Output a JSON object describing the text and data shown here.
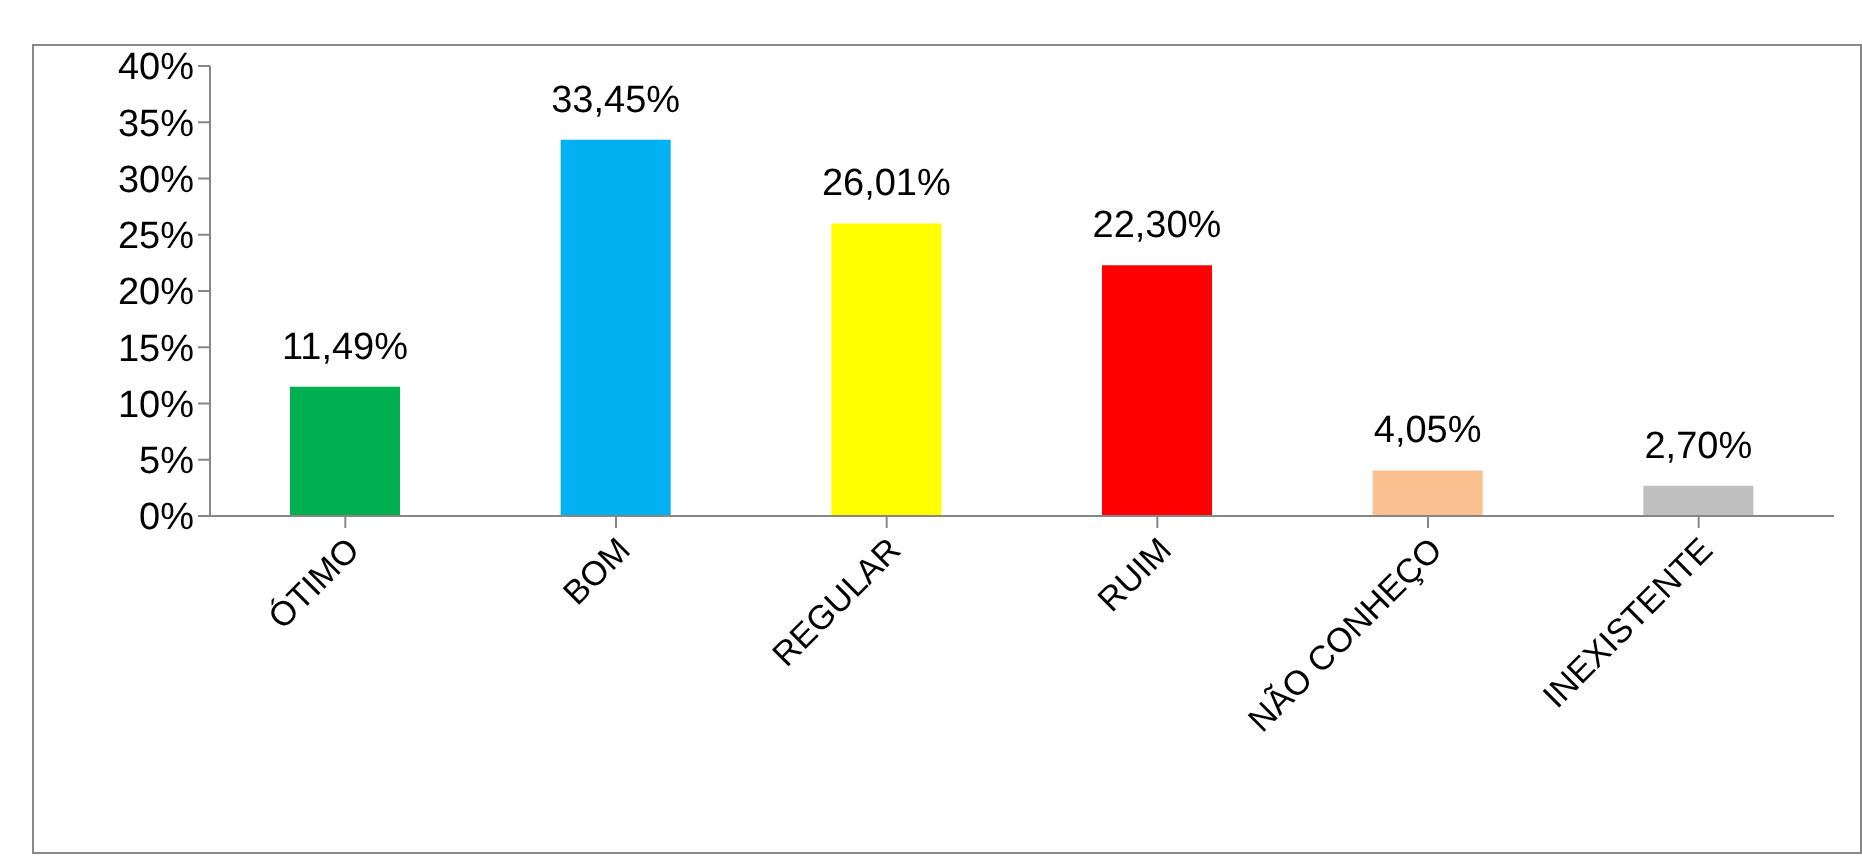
{
  "chart_data": {
    "type": "bar",
    "categories": [
      "ÓTIMO",
      "BOM",
      "REGULAR",
      "RUIM",
      "NÃO CONHEÇO",
      "INEXISTENTE"
    ],
    "values": [
      11.49,
      33.45,
      26.01,
      22.3,
      4.05,
      2.7
    ],
    "colors": [
      "#00b050",
      "#00b0f0",
      "#ffff00",
      "#ff0000",
      "#fac090",
      "#bfbfbf"
    ],
    "value_labels": [
      "11,49%",
      "33,45%",
      "26,01%",
      "22,30%",
      "4,05%",
      "2,70%"
    ],
    "ylim": [
      0,
      40
    ],
    "yticks": [
      {
        "value": 0,
        "label": "0%"
      },
      {
        "value": 5,
        "label": "5%"
      },
      {
        "value": 10,
        "label": "10%"
      },
      {
        "value": 15,
        "label": "15%"
      },
      {
        "value": 20,
        "label": "20%"
      },
      {
        "value": 25,
        "label": "25%"
      },
      {
        "value": 30,
        "label": "30%"
      },
      {
        "value": 35,
        "label": "35%"
      },
      {
        "value": 40,
        "label": "40%"
      }
    ],
    "grid": false,
    "legend": false
  }
}
